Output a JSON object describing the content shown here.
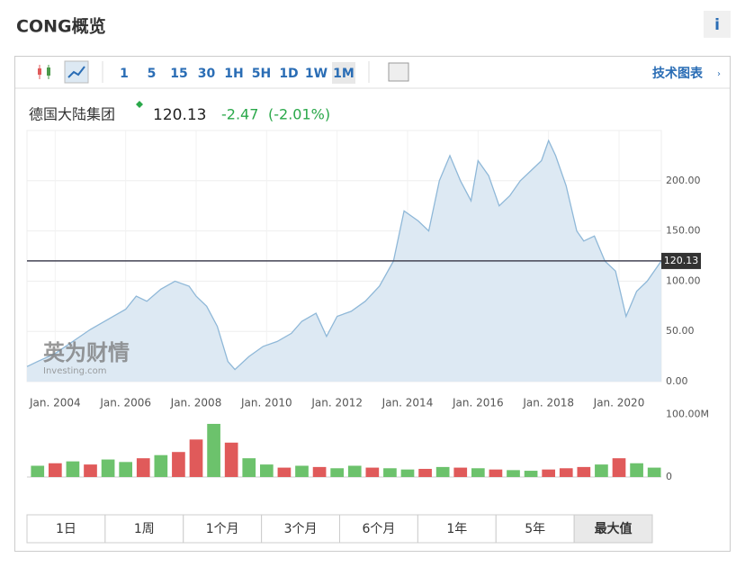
{
  "header": {
    "title": "CONG概览",
    "info": "i"
  },
  "toolbar": {
    "intervals": [
      "1",
      "5",
      "15",
      "30",
      "1H",
      "5H",
      "1D",
      "1W",
      "1M"
    ],
    "link": "技术图表"
  },
  "quote": {
    "name": "德国大陆集团",
    "price": 120.13,
    "change": -2.47,
    "change_pct": "(-2.01%)"
  },
  "watermark": {
    "brand": "英为财情",
    "site": "Investing.com"
  },
  "chart_data": [
    {
      "type": "area",
      "color": "#8fb8d8",
      "fill": "#dde9f3",
      "x": [
        2003.2,
        2003.5,
        2004,
        2004.5,
        2005,
        2005.5,
        2006,
        2006.3,
        2006.6,
        2007,
        2007.4,
        2007.8,
        2008,
        2008.3,
        2008.6,
        2008.9,
        2009.1,
        2009.5,
        2009.9,
        2010.3,
        2010.7,
        2011,
        2011.4,
        2011.7,
        2012,
        2012.4,
        2012.8,
        2013.2,
        2013.6,
        2013.9,
        2014.3,
        2014.6,
        2014.9,
        2015.2,
        2015.5,
        2015.8,
        2016,
        2016.3,
        2016.6,
        2016.9,
        2017.2,
        2017.5,
        2017.8,
        2018,
        2018.2,
        2018.5,
        2018.8,
        2019,
        2019.3,
        2019.6,
        2019.9,
        2020.2,
        2020.5,
        2020.8,
        2021.2
      ],
      "values": [
        15,
        20,
        28,
        40,
        52,
        62,
        72,
        85,
        80,
        92,
        100,
        95,
        85,
        75,
        55,
        20,
        12,
        25,
        35,
        40,
        48,
        60,
        68,
        45,
        65,
        70,
        80,
        95,
        120,
        170,
        160,
        150,
        200,
        225,
        200,
        180,
        220,
        205,
        175,
        185,
        200,
        210,
        220,
        240,
        225,
        195,
        150,
        140,
        145,
        120,
        110,
        65,
        90,
        100,
        120.13
      ],
      "last": 120.13,
      "xlim": [
        2003.2,
        2021.2
      ],
      "ylim": [
        0,
        250
      ],
      "xticks": [
        {
          "value": 2004,
          "label": "Jan. 2004"
        },
        {
          "value": 2006,
          "label": "Jan. 2006"
        },
        {
          "value": 2008,
          "label": "Jan. 2008"
        },
        {
          "value": 2010,
          "label": "Jan. 2010"
        },
        {
          "value": 2012,
          "label": "Jan. 2012"
        },
        {
          "value": 2014,
          "label": "Jan. 2014"
        },
        {
          "value": 2016,
          "label": "Jan. 2016"
        },
        {
          "value": 2018,
          "label": "Jan. 2018"
        },
        {
          "value": 2020,
          "label": "Jan. 2020"
        }
      ],
      "yticks": [
        {
          "value": 0,
          "label": "0.00"
        },
        {
          "value": 50,
          "label": "50.00"
        },
        {
          "value": 100,
          "label": "100.00"
        },
        {
          "value": 150,
          "label": "150.00"
        },
        {
          "value": 200,
          "label": "200.00"
        }
      ],
      "grid": true
    },
    {
      "type": "bar",
      "x": [
        2003.5,
        2004,
        2004.5,
        2005,
        2005.5,
        2006,
        2006.5,
        2007,
        2007.5,
        2008,
        2008.5,
        2009,
        2009.5,
        2010,
        2010.5,
        2011,
        2011.5,
        2012,
        2012.5,
        2013,
        2013.5,
        2014,
        2014.5,
        2015,
        2015.5,
        2016,
        2016.5,
        2017,
        2017.5,
        2018,
        2018.5,
        2019,
        2019.5,
        2020,
        2020.5,
        2021
      ],
      "values": [
        18,
        22,
        25,
        20,
        28,
        24,
        30,
        35,
        40,
        60,
        85,
        55,
        30,
        20,
        15,
        18,
        16,
        14,
        18,
        15,
        14,
        12,
        13,
        16,
        15,
        14,
        12,
        11,
        10,
        12,
        14,
        16,
        20,
        30,
        22,
        15
      ],
      "colors": [
        "#6cc26c",
        "#e05a5a",
        "#6cc26c",
        "#e05a5a",
        "#6cc26c",
        "#6cc26c",
        "#e05a5a",
        "#6cc26c",
        "#e05a5a",
        "#e05a5a",
        "#6cc26c",
        "#e05a5a",
        "#6cc26c",
        "#6cc26c",
        "#e05a5a",
        "#6cc26c",
        "#e05a5a",
        "#6cc26c",
        "#6cc26c",
        "#e05a5a",
        "#6cc26c",
        "#6cc26c",
        "#e05a5a",
        "#6cc26c",
        "#e05a5a",
        "#6cc26c",
        "#e05a5a",
        "#6cc26c",
        "#6cc26c",
        "#e05a5a",
        "#e05a5a",
        "#e05a5a",
        "#6cc26c",
        "#e05a5a",
        "#6cc26c",
        "#6cc26c"
      ],
      "xlim": [
        2003.2,
        2021.2
      ],
      "ylim": [
        0,
        108
      ],
      "yticks": [
        0,
        {
          "value": 100,
          "label": "100.00M"
        }
      ]
    }
  ],
  "ranges": [
    "1日",
    "1周",
    "1个月",
    "3个月",
    "6个月",
    "1年",
    "5年",
    "最大值"
  ]
}
